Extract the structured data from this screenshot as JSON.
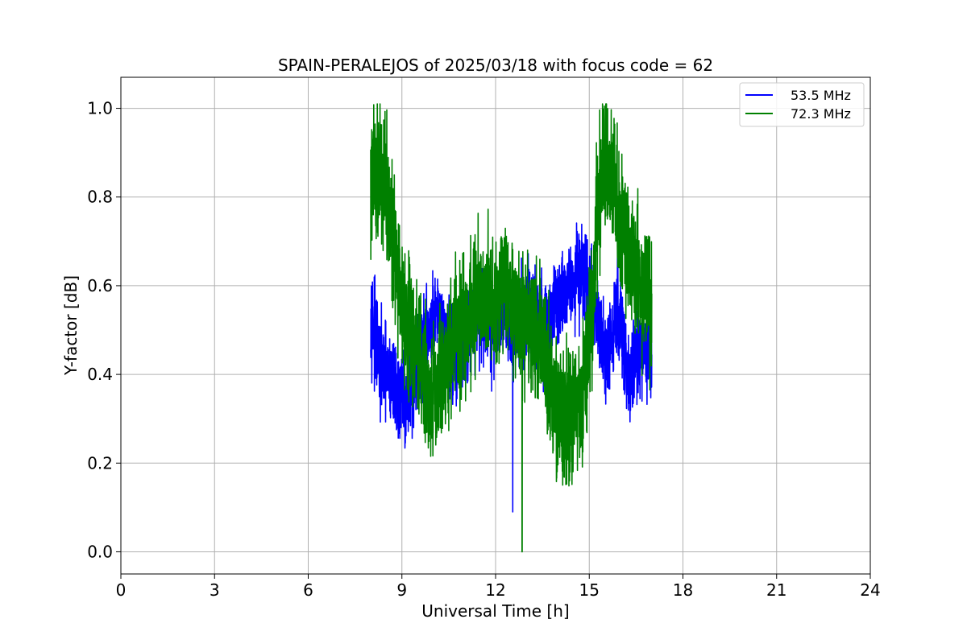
{
  "chart_data": {
    "type": "line",
    "title": "SPAIN-PERALEJOS of 2025/03/18 with focus code = 62",
    "xlabel": "Universal Time [h]",
    "ylabel": "Y-factor [dB]",
    "xlim": [
      0,
      24
    ],
    "ylim": [
      -0.05,
      1.07
    ],
    "xticks": [
      0,
      3,
      6,
      9,
      12,
      15,
      18,
      21,
      24
    ],
    "xtick_labels": [
      "0",
      "3",
      "6",
      "9",
      "12",
      "15",
      "18",
      "21",
      "24"
    ],
    "yticks": [
      0.0,
      0.2,
      0.4,
      0.6,
      0.8,
      1.0
    ],
    "ytick_labels": [
      "0.0",
      "0.2",
      "0.4",
      "0.6",
      "0.8",
      "1.0"
    ],
    "grid": true,
    "legend": "upper right",
    "series": [
      {
        "name": "53.5 MHz",
        "color": "#0000ff",
        "noise": 0.09,
        "x": [
          8.0,
          8.1,
          8.3,
          8.5,
          8.7,
          8.9,
          9.1,
          9.3,
          9.5,
          9.7,
          9.9,
          10.1,
          10.3,
          10.5,
          10.7,
          10.9,
          11.1,
          11.3,
          11.5,
          11.7,
          11.9,
          12.1,
          12.3,
          12.5,
          12.7,
          12.9,
          13.1,
          13.3,
          13.5,
          13.7,
          13.9,
          14.1,
          14.3,
          14.5,
          14.7,
          14.9,
          15.1,
          15.3,
          15.5,
          15.7,
          15.9,
          16.1,
          16.3,
          16.5,
          16.7,
          16.9,
          17.0
        ],
        "y": [
          0.55,
          0.5,
          0.42,
          0.4,
          0.38,
          0.35,
          0.33,
          0.37,
          0.42,
          0.47,
          0.5,
          0.52,
          0.5,
          0.46,
          0.44,
          0.47,
          0.5,
          0.53,
          0.55,
          0.52,
          0.5,
          0.52,
          0.55,
          0.5,
          0.52,
          0.54,
          0.55,
          0.53,
          0.5,
          0.52,
          0.55,
          0.58,
          0.6,
          0.62,
          0.63,
          0.62,
          0.58,
          0.5,
          0.45,
          0.48,
          0.55,
          0.45,
          0.38,
          0.42,
          0.45,
          0.44,
          0.43
        ]
      },
      {
        "name": "72.3 MHz",
        "color": "#008000",
        "noise": 0.13,
        "x": [
          8.0,
          8.1,
          8.3,
          8.5,
          8.7,
          8.9,
          9.1,
          9.3,
          9.5,
          9.7,
          9.9,
          10.1,
          10.3,
          10.5,
          10.7,
          10.9,
          11.1,
          11.3,
          11.5,
          11.7,
          11.9,
          12.1,
          12.3,
          12.5,
          12.7,
          12.9,
          13.1,
          13.3,
          13.5,
          13.7,
          13.9,
          14.1,
          14.3,
          14.5,
          14.7,
          14.9,
          15.1,
          15.3,
          15.5,
          15.7,
          15.9,
          16.1,
          16.3,
          16.5,
          16.7,
          16.9,
          17.0
        ],
        "y": [
          0.8,
          0.85,
          0.88,
          0.8,
          0.72,
          0.62,
          0.55,
          0.5,
          0.45,
          0.4,
          0.35,
          0.38,
          0.4,
          0.45,
          0.5,
          0.48,
          0.52,
          0.55,
          0.6,
          0.58,
          0.55,
          0.58,
          0.6,
          0.55,
          0.52,
          0.5,
          0.55,
          0.5,
          0.45,
          0.4,
          0.35,
          0.3,
          0.3,
          0.3,
          0.35,
          0.4,
          0.55,
          0.8,
          0.88,
          0.85,
          0.78,
          0.72,
          0.68,
          0.63,
          0.58,
          0.55,
          0.52
        ]
      }
    ],
    "dips": [
      {
        "series": 0,
        "x": 12.55,
        "y": 0.09
      },
      {
        "series": 1,
        "x": 12.85,
        "y": 0.0
      },
      {
        "series": 1,
        "x": 8.3,
        "y": 1.01
      },
      {
        "series": 1,
        "x": 15.55,
        "y": 1.02
      }
    ]
  }
}
